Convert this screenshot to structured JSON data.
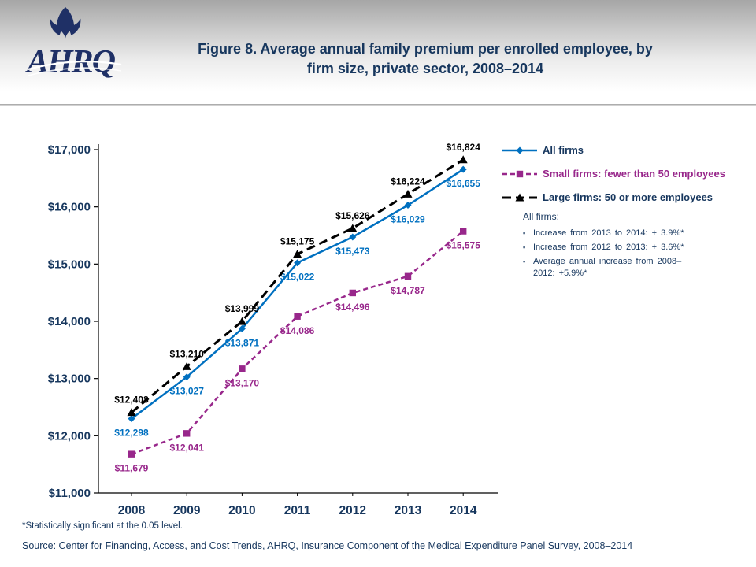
{
  "colors": {
    "navy": "#17375E",
    "all_firms_blue": "#0070C0",
    "small_firms_purple": "#98278B",
    "large_firms_black": "#000000",
    "logo_navy": "#1F3066",
    "axis_black": "#000000"
  },
  "header": {
    "logo_text": "AHRQ",
    "title_line1": "Figure 8.  Average annual family premium per enrolled employee, by",
    "title_line2": "firm size, private sector, 2008–2014"
  },
  "chart_data": {
    "type": "line",
    "title": "Average annual family premium per enrolled employee, by firm size, private sector, 2008–2014",
    "x": [
      "2008",
      "2009",
      "2010",
      "2011",
      "2012",
      "2013",
      "2014"
    ],
    "xlabel": "",
    "ylabel": "",
    "ylim": [
      11000,
      17000
    ],
    "ytick_step": 1000,
    "ytick_labels": [
      "$11,000",
      "$12,000",
      "$13,000",
      "$14,000",
      "$15,000",
      "$16,000",
      "$17,000"
    ],
    "grid": false,
    "legend_position": "right",
    "series": [
      {
        "name": "All firms",
        "color": "#0070C0",
        "line_style": "solid",
        "marker": "diamond",
        "label_side": "below",
        "values": [
          12298,
          13027,
          13871,
          15022,
          15473,
          16029,
          16655
        ],
        "value_labels": [
          "$12,298",
          "$13,027",
          "$13,871",
          "$15,022",
          "$15,473",
          "$16,029",
          "$16,655"
        ]
      },
      {
        "name": "Small firms: fewer than 50 employees",
        "color": "#98278B",
        "line_style": "dashed",
        "marker": "square",
        "label_side": "below",
        "values": [
          11679,
          12041,
          13170,
          14086,
          14496,
          14787,
          15575
        ],
        "value_labels": [
          "$11,679",
          "$12,041",
          "$13,170",
          "$14,086",
          "$14,496",
          "$14,787",
          "$15,575"
        ]
      },
      {
        "name": "Large firms: 50 or more employees",
        "color": "#000000",
        "line_style": "long-dash",
        "marker": "triangle",
        "label_side": "above",
        "values": [
          12408,
          13210,
          13999,
          15175,
          15626,
          16224,
          16824
        ],
        "value_labels": [
          "$12,408",
          "$13,210",
          "$13,999",
          "$15,175",
          "$15,626",
          "$16,224",
          "$16,824"
        ]
      }
    ]
  },
  "legend": {
    "items": [
      {
        "label": "All firms",
        "text_color": "#17375E"
      },
      {
        "label": "Small firms: fewer than 50 employees",
        "text_color": "#98278B"
      },
      {
        "label": "Large firms: 50 or more employees",
        "text_color": "#17375E"
      }
    ]
  },
  "annotation": {
    "heading": "All firms:",
    "bullets": [
      "Increase from 2013 to 2014:  + 3.9%*",
      "Increase from 2012 to 2013:  + 3.6%*",
      "Average annual increase from 2008–2012:  +5.9%*"
    ]
  },
  "footer": {
    "note": "*Statistically significant at the 0.05 level.",
    "source": "Source: Center for Financing, Access, and Cost Trends, AHRQ, Insurance Component of the Medical Expenditure Panel Survey,  2008–2014"
  }
}
